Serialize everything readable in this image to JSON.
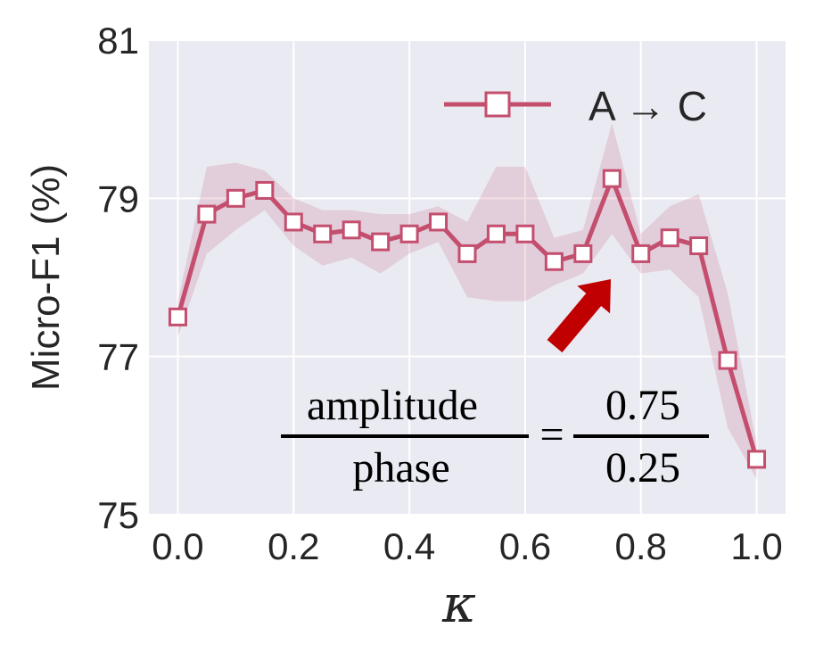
{
  "chart_data": {
    "type": "line",
    "title": "",
    "xlabel": "κ",
    "ylabel": "Micro-F1 (%)",
    "xlim": [
      -0.05,
      1.05
    ],
    "ylim": [
      75,
      81
    ],
    "xticks": [
      "0.0",
      "0.2",
      "0.4",
      "0.6",
      "0.8",
      "1.0"
    ],
    "xtick_values": [
      0.0,
      0.2,
      0.4,
      0.6,
      0.8,
      1.0
    ],
    "yticks": [
      "75",
      "77",
      "79",
      "81"
    ],
    "ytick_values": [
      75,
      77,
      79,
      81
    ],
    "grid": true,
    "legend_position": "top-right",
    "series": [
      {
        "name": "A → C",
        "color": "#c44e6e",
        "marker": "square",
        "x": [
          0.0,
          0.05,
          0.1,
          0.15,
          0.2,
          0.25,
          0.3,
          0.35,
          0.4,
          0.45,
          0.5,
          0.55,
          0.6,
          0.65,
          0.7,
          0.75,
          0.8,
          0.85,
          0.9,
          0.95,
          1.0
        ],
        "y": [
          77.5,
          78.8,
          79.0,
          79.1,
          78.7,
          78.55,
          78.6,
          78.45,
          78.55,
          78.7,
          78.3,
          78.55,
          78.55,
          78.2,
          78.3,
          79.25,
          78.3,
          78.5,
          78.4,
          76.95,
          75.7
        ],
        "band_upper": [
          77.7,
          79.4,
          79.45,
          79.35,
          79.0,
          78.85,
          78.85,
          78.8,
          78.8,
          78.9,
          78.7,
          79.4,
          79.4,
          78.5,
          78.6,
          79.95,
          78.55,
          78.9,
          79.05,
          77.8,
          75.9
        ],
        "band_lower": [
          77.25,
          78.3,
          78.6,
          78.85,
          78.4,
          78.15,
          78.25,
          78.05,
          78.3,
          78.45,
          77.75,
          77.7,
          77.7,
          77.9,
          78.05,
          78.55,
          78.05,
          78.1,
          77.75,
          76.1,
          75.45
        ]
      }
    ],
    "annotation": {
      "numerator_label": "amplitude",
      "denominator_label": "phase",
      "equals": "=",
      "numerator_value": "0.75",
      "denominator_value": "0.25",
      "arrow_color": "#c00000",
      "arrow_points_to": "κ=0.75"
    }
  }
}
